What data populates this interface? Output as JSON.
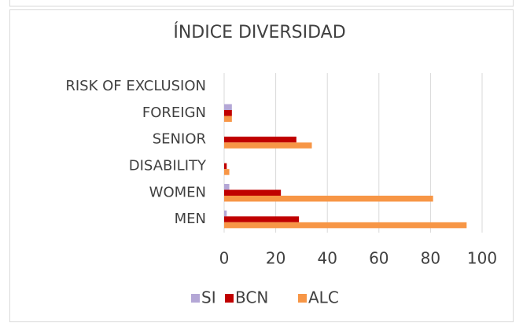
{
  "chart_data": {
    "type": "hbar",
    "title": "ÍNDICE DIVERSIDAD",
    "categories": [
      "RISK OF EXCLUSION",
      "FOREIGN",
      "SENIOR",
      "DISABILITY",
      "WOMEN",
      "MEN"
    ],
    "series": [
      {
        "name": "SI",
        "color": "#b4a7d6",
        "values": [
          0,
          3,
          0,
          0,
          2,
          1
        ]
      },
      {
        "name": "BCN",
        "color": "#c00000",
        "values": [
          0,
          3,
          28,
          1,
          22,
          29
        ]
      },
      {
        "name": "ALC",
        "color": "#f79646",
        "values": [
          0,
          3,
          34,
          2,
          81,
          94
        ]
      }
    ],
    "xlim": [
      0,
      100
    ],
    "xticks": [
      0,
      20,
      40,
      60,
      80,
      100
    ],
    "grid": true,
    "legend": "bottom"
  }
}
